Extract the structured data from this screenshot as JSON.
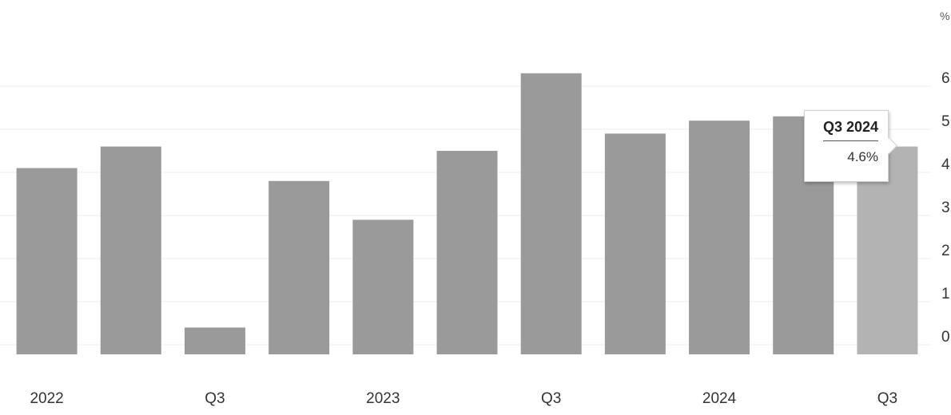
{
  "chart_data": {
    "type": "bar",
    "categories": [
      "Q1 2022",
      "Q2 2022",
      "Q3 2022",
      "Q4 2022",
      "Q1 2023",
      "Q2 2023",
      "Q3 2023",
      "Q4 2023",
      "Q1 2024",
      "Q2 2024",
      "Q3 2024"
    ],
    "values": [
      4.1,
      4.6,
      0.4,
      3.8,
      2.9,
      4.5,
      6.3,
      4.9,
      5.2,
      5.3,
      4.6
    ],
    "x_tick_labels": [
      {
        "category": "Q1 2022",
        "text": "2022"
      },
      {
        "category": "Q3 2022",
        "text": "Q3"
      },
      {
        "category": "Q1 2023",
        "text": "2023"
      },
      {
        "category": "Q3 2023",
        "text": "Q3"
      },
      {
        "category": "Q1 2024",
        "text": "2024"
      },
      {
        "category": "Q3 2024",
        "text": "Q3"
      }
    ],
    "y_ticks": [
      0,
      1,
      2,
      3,
      4,
      5,
      6
    ],
    "y_tick_labels": [
      "0",
      "1",
      "2",
      "3",
      "4",
      "5",
      "6"
    ],
    "y_unit": "%",
    "ylim": [
      0,
      7
    ],
    "grid": true,
    "highlighted_index": 10,
    "tooltip": {
      "title": "Q3 2024",
      "value": "4.6%"
    },
    "colors": {
      "bar": "#9a9a9a",
      "bar_highlight": "#b3b3b3",
      "grid": "#ededed"
    }
  }
}
